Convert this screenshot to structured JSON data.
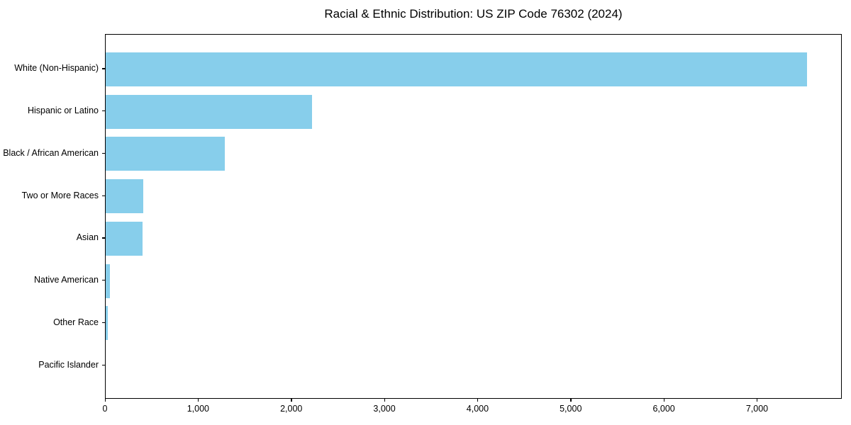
{
  "title": "Racial & Ethnic Distribution: US ZIP Code 76302 (2024)",
  "chart_data": {
    "type": "bar",
    "orientation": "horizontal",
    "title": "Racial & Ethnic Distribution: US ZIP Code 76302 (2024)",
    "xlabel": "",
    "ylabel": "",
    "categories": [
      "White (Non-Hispanic)",
      "Hispanic or Latino",
      "Black / African American",
      "Two or More Races",
      "Asian",
      "Native American",
      "Other Race",
      "Pacific Islander"
    ],
    "values": [
      7530,
      2215,
      1280,
      405,
      395,
      45,
      25,
      0
    ],
    "xlim": [
      0,
      7910
    ],
    "xticks": [
      0,
      1000,
      2000,
      3000,
      4000,
      5000,
      6000,
      7000
    ],
    "xtick_labels": [
      "0",
      "1,000",
      "2,000",
      "3,000",
      "4,000",
      "5,000",
      "6,000",
      "7,000"
    ],
    "grid": false,
    "legend": null,
    "bar_color": "#87CEEB",
    "axis_color": "#000000",
    "text_color": "#000000",
    "background_color": "#ffffff"
  }
}
